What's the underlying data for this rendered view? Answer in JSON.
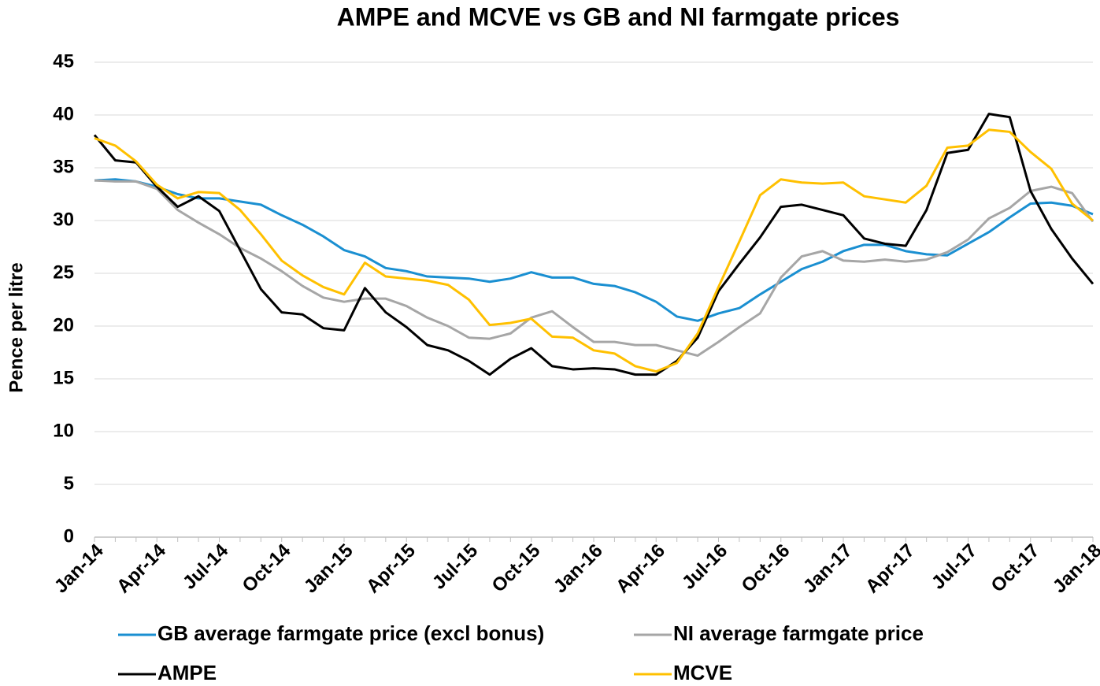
{
  "chart_data": {
    "type": "line",
    "title": "AMPE and MCVE vs GB and NI farmgate prices",
    "y_label": "Pence per litre",
    "categories": [
      "Jan-14",
      null,
      null,
      "Apr-14",
      null,
      null,
      "Jul-14",
      null,
      null,
      "Oct-14",
      null,
      null,
      "Jan-15",
      null,
      null,
      "Apr-15",
      null,
      null,
      "Jul-15",
      null,
      null,
      "Oct-15",
      null,
      null,
      "Jan-16",
      null,
      null,
      "Apr-16",
      null,
      null,
      "Jul-16",
      null,
      null,
      "Oct-16",
      null,
      null,
      "Jan-17",
      null,
      null,
      "Apr-17",
      null,
      null,
      "Jul-17",
      null,
      null,
      "Oct-17",
      null,
      null,
      "Jan-18"
    ],
    "series": [
      {
        "name": "GB average farmgate price (excl bonus)",
        "color": "#1a8fd1",
        "values": [
          33.8,
          33.9,
          33.7,
          33.2,
          32.5,
          32.1,
          32.1,
          31.8,
          31.5,
          30.5,
          29.6,
          28.5,
          27.2,
          26.6,
          25.5,
          25.2,
          24.7,
          24.6,
          24.5,
          24.2,
          24.5,
          25.1,
          24.6,
          24.6,
          24.0,
          23.8,
          23.2,
          22.3,
          20.9,
          20.5,
          21.2,
          21.7,
          23.0,
          24.2,
          25.4,
          26.1,
          27.1,
          27.7,
          27.7,
          27.1,
          26.8,
          26.7,
          27.8,
          28.9,
          30.3,
          31.6,
          31.7,
          31.4,
          30.6
        ]
      },
      {
        "name": "NI average farmgate price",
        "color": "#a6a6a6",
        "values": [
          33.8,
          33.7,
          33.7,
          33.0,
          31.0,
          29.8,
          28.7,
          27.4,
          26.4,
          25.2,
          23.8,
          22.7,
          22.3,
          22.6,
          22.6,
          21.9,
          20.8,
          20.0,
          18.9,
          18.8,
          19.3,
          20.8,
          21.4,
          19.9,
          18.5,
          18.5,
          18.2,
          18.2,
          17.7,
          17.2,
          18.5,
          19.9,
          21.2,
          24.6,
          26.6,
          27.1,
          26.2,
          26.1,
          26.3,
          26.1,
          26.3,
          27.0,
          28.2,
          30.2,
          31.2,
          32.8,
          33.2,
          32.6,
          29.9
        ]
      },
      {
        "name": "AMPE",
        "color": "#000000",
        "values": [
          38.1,
          35.7,
          35.5,
          33.2,
          31.3,
          32.3,
          30.9,
          27.2,
          23.5,
          21.3,
          21.1,
          19.8,
          19.6,
          23.6,
          21.3,
          19.9,
          18.2,
          17.7,
          16.7,
          15.4,
          16.9,
          17.9,
          16.2,
          15.9,
          16.0,
          15.9,
          15.4,
          15.4,
          16.7,
          18.9,
          23.3,
          25.9,
          28.4,
          31.3,
          31.5,
          31.0,
          30.5,
          28.3,
          27.8,
          27.6,
          31.0,
          36.4,
          36.7,
          40.1,
          39.8,
          32.8,
          29.2,
          26.4,
          24.0
        ]
      },
      {
        "name": "MCVE",
        "color": "#ffc000",
        "values": [
          37.8,
          37.1,
          35.6,
          33.4,
          32.1,
          32.7,
          32.6,
          31.0,
          28.7,
          26.2,
          24.8,
          23.7,
          23.0,
          26.0,
          24.7,
          24.5,
          24.3,
          23.9,
          22.5,
          20.1,
          20.3,
          20.7,
          19.0,
          18.9,
          17.7,
          17.4,
          16.2,
          15.7,
          16.5,
          19.3,
          23.7,
          28.0,
          32.4,
          33.9,
          33.6,
          33.5,
          33.6,
          32.3,
          32.0,
          31.7,
          33.3,
          36.9,
          37.1,
          38.6,
          38.4,
          36.5,
          34.9,
          31.6,
          30.0
        ]
      }
    ],
    "ylim": [
      0,
      45
    ],
    "yticks": [
      0,
      5,
      10,
      15,
      20,
      25,
      30,
      35,
      40,
      45
    ],
    "grid": true,
    "legend": "bottom"
  }
}
